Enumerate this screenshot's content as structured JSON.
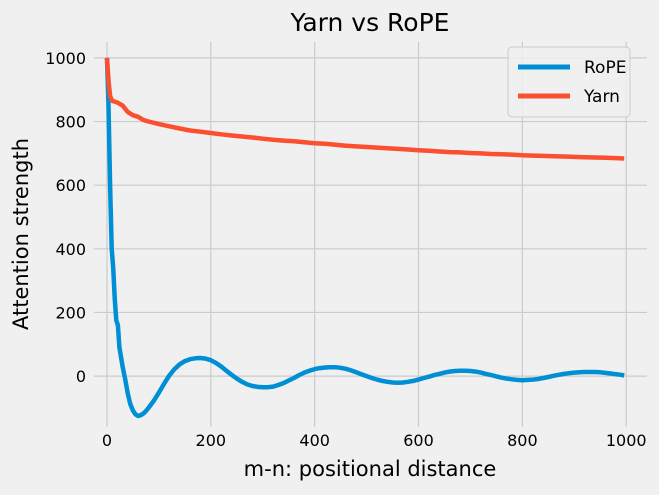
{
  "colors": {
    "background": "#f0f0f0",
    "grid": "#cbcbcb",
    "rope": "#008fd5",
    "yarn": "#fc4f30"
  },
  "chart_data": {
    "type": "line",
    "title": "Yarn vs RoPE",
    "xlabel": "m-n: positional distance",
    "ylabel": "Attention strength",
    "xlim": [
      -25,
      1040
    ],
    "ylim": [
      -160,
      1050
    ],
    "xticks": [
      0,
      200,
      400,
      600,
      800,
      1000
    ],
    "yticks": [
      0,
      200,
      400,
      600,
      800,
      1000
    ],
    "grid": true,
    "legend_position": "top-right",
    "series": [
      {
        "name": "RoPE",
        "color": "#008fd5",
        "points": [
          [
            0,
            1000
          ],
          [
            3,
            850
          ],
          [
            6,
            600
          ],
          [
            9,
            400
          ],
          [
            12,
            340
          ],
          [
            15,
            240
          ],
          [
            18,
            175
          ],
          [
            21,
            160
          ],
          [
            24,
            90
          ],
          [
            27,
            60
          ],
          [
            30,
            30
          ],
          [
            35,
            -10
          ],
          [
            40,
            -55
          ],
          [
            45,
            -88
          ],
          [
            50,
            -108
          ],
          [
            55,
            -120
          ],
          [
            60,
            -125
          ],
          [
            65,
            -123
          ],
          [
            70,
            -118
          ],
          [
            75,
            -110
          ],
          [
            80,
            -100
          ],
          [
            90,
            -78
          ],
          [
            100,
            -52
          ],
          [
            110,
            -24
          ],
          [
            120,
            2
          ],
          [
            130,
            22
          ],
          [
            140,
            37
          ],
          [
            150,
            47
          ],
          [
            160,
            53
          ],
          [
            170,
            56
          ],
          [
            180,
            57
          ],
          [
            190,
            55
          ],
          [
            200,
            50
          ],
          [
            210,
            41
          ],
          [
            220,
            30
          ],
          [
            230,
            17
          ],
          [
            240,
            4
          ],
          [
            250,
            -8
          ],
          [
            260,
            -18
          ],
          [
            270,
            -26
          ],
          [
            280,
            -31
          ],
          [
            290,
            -34
          ],
          [
            300,
            -35
          ],
          [
            310,
            -35
          ],
          [
            320,
            -33
          ],
          [
            330,
            -28
          ],
          [
            340,
            -22
          ],
          [
            350,
            -14
          ],
          [
            360,
            -6
          ],
          [
            370,
            3
          ],
          [
            380,
            11
          ],
          [
            390,
            17
          ],
          [
            400,
            22
          ],
          [
            410,
            25
          ],
          [
            420,
            27
          ],
          [
            430,
            28
          ],
          [
            440,
            28
          ],
          [
            450,
            26
          ],
          [
            460,
            23
          ],
          [
            470,
            18
          ],
          [
            480,
            12
          ],
          [
            490,
            6
          ],
          [
            500,
            0
          ],
          [
            510,
            -6
          ],
          [
            520,
            -11
          ],
          [
            530,
            -15
          ],
          [
            540,
            -18
          ],
          [
            550,
            -20
          ],
          [
            560,
            -21
          ],
          [
            570,
            -20
          ],
          [
            580,
            -18
          ],
          [
            590,
            -15
          ],
          [
            600,
            -11
          ],
          [
            610,
            -6
          ],
          [
            620,
            -2
          ],
          [
            630,
            3
          ],
          [
            640,
            7
          ],
          [
            650,
            11
          ],
          [
            660,
            14
          ],
          [
            670,
            16
          ],
          [
            680,
            17
          ],
          [
            690,
            17
          ],
          [
            700,
            16
          ],
          [
            710,
            14
          ],
          [
            720,
            11
          ],
          [
            730,
            7
          ],
          [
            740,
            3
          ],
          [
            750,
            -1
          ],
          [
            760,
            -5
          ],
          [
            770,
            -8
          ],
          [
            780,
            -10
          ],
          [
            790,
            -12
          ],
          [
            800,
            -13
          ],
          [
            810,
            -12
          ],
          [
            820,
            -11
          ],
          [
            830,
            -9
          ],
          [
            840,
            -6
          ],
          [
            850,
            -3
          ],
          [
            860,
            1
          ],
          [
            870,
            4
          ],
          [
            880,
            7
          ],
          [
            890,
            9
          ],
          [
            900,
            11
          ],
          [
            910,
            12
          ],
          [
            920,
            13
          ],
          [
            930,
            13
          ],
          [
            940,
            13
          ],
          [
            950,
            12
          ],
          [
            960,
            10
          ],
          [
            970,
            8
          ],
          [
            980,
            6
          ],
          [
            990,
            4
          ],
          [
            996,
            2
          ]
        ]
      },
      {
        "name": "Yarn",
        "color": "#fc4f30",
        "points": [
          [
            0,
            1000
          ],
          [
            3,
            930
          ],
          [
            6,
            880
          ],
          [
            10,
            865
          ],
          [
            20,
            860
          ],
          [
            30,
            850
          ],
          [
            40,
            830
          ],
          [
            50,
            820
          ],
          [
            60,
            815
          ],
          [
            70,
            805
          ],
          [
            80,
            800
          ],
          [
            100,
            792
          ],
          [
            120,
            785
          ],
          [
            140,
            778
          ],
          [
            160,
            772
          ],
          [
            180,
            768
          ],
          [
            200,
            764
          ],
          [
            220,
            760
          ],
          [
            240,
            756
          ],
          [
            260,
            753
          ],
          [
            280,
            750
          ],
          [
            300,
            746
          ],
          [
            320,
            743
          ],
          [
            340,
            740
          ],
          [
            360,
            738
          ],
          [
            380,
            735
          ],
          [
            400,
            732
          ],
          [
            420,
            730
          ],
          [
            440,
            727
          ],
          [
            460,
            724
          ],
          [
            480,
            722
          ],
          [
            500,
            720
          ],
          [
            520,
            718
          ],
          [
            540,
            716
          ],
          [
            560,
            714
          ],
          [
            580,
            712
          ],
          [
            600,
            710
          ],
          [
            620,
            708
          ],
          [
            640,
            706
          ],
          [
            660,
            704
          ],
          [
            680,
            703
          ],
          [
            700,
            701
          ],
          [
            720,
            700
          ],
          [
            740,
            698
          ],
          [
            760,
            697
          ],
          [
            780,
            696
          ],
          [
            800,
            694
          ],
          [
            820,
            693
          ],
          [
            840,
            692
          ],
          [
            860,
            691
          ],
          [
            880,
            690
          ],
          [
            900,
            689
          ],
          [
            920,
            688
          ],
          [
            940,
            687
          ],
          [
            960,
            686
          ],
          [
            980,
            685
          ],
          [
            996,
            684
          ]
        ]
      }
    ]
  }
}
